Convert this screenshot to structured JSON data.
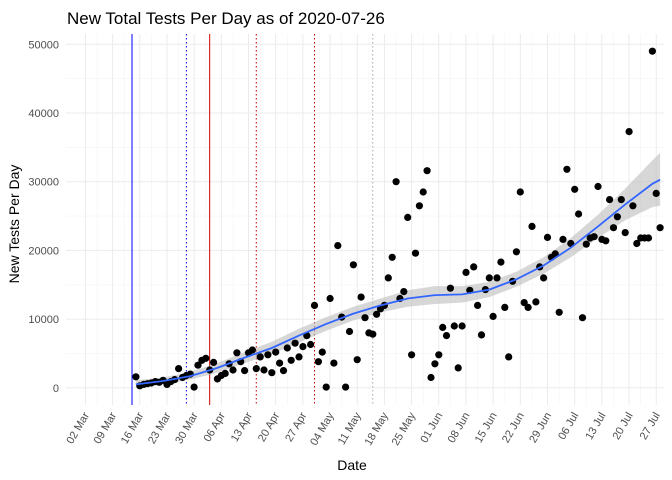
{
  "chart_data": {
    "type": "scatter",
    "title": "New Total Tests Per Day as of 2020-07-26",
    "xlabel": "Date",
    "ylabel": "New Tests Per Day",
    "xlim": [
      "2020-02-26",
      "2020-07-29"
    ],
    "ylim": [
      -2500,
      51500
    ],
    "grid": true,
    "legend": "none",
    "x_ticks": [
      {
        "date": "2020-03-02",
        "label": "02 Mar"
      },
      {
        "date": "2020-03-09",
        "label": "09 Mar"
      },
      {
        "date": "2020-03-16",
        "label": "16 Mar"
      },
      {
        "date": "2020-03-23",
        "label": "23 Mar"
      },
      {
        "date": "2020-03-30",
        "label": "30 Mar"
      },
      {
        "date": "2020-04-06",
        "label": "06 Apr"
      },
      {
        "date": "2020-04-13",
        "label": "13 Apr"
      },
      {
        "date": "2020-04-20",
        "label": "20 Apr"
      },
      {
        "date": "2020-04-27",
        "label": "27 Apr"
      },
      {
        "date": "2020-05-04",
        "label": "04 May"
      },
      {
        "date": "2020-05-11",
        "label": "11 May"
      },
      {
        "date": "2020-05-18",
        "label": "18 May"
      },
      {
        "date": "2020-05-25",
        "label": "25 May"
      },
      {
        "date": "2020-06-01",
        "label": "01 Jun"
      },
      {
        "date": "2020-06-08",
        "label": "08 Jun"
      },
      {
        "date": "2020-06-15",
        "label": "15 Jun"
      },
      {
        "date": "2020-06-22",
        "label": "22 Jun"
      },
      {
        "date": "2020-06-29",
        "label": "29 Jun"
      },
      {
        "date": "2020-07-06",
        "label": "06 Jul"
      },
      {
        "date": "2020-07-13",
        "label": "13 Jul"
      },
      {
        "date": "2020-07-20",
        "label": "20 Jul"
      },
      {
        "date": "2020-07-27",
        "label": "27 Jul"
      }
    ],
    "y_ticks": [
      0,
      10000,
      20000,
      30000,
      40000,
      50000
    ],
    "vlines": [
      {
        "date": "2020-03-14",
        "color": "#0000ff",
        "style": "solid"
      },
      {
        "date": "2020-03-28",
        "color": "#0000ff",
        "style": "dotted"
      },
      {
        "date": "2020-04-03",
        "color": "#cc0000",
        "style": "solid"
      },
      {
        "date": "2020-04-15",
        "color": "#cc0000",
        "style": "dotted"
      },
      {
        "date": "2020-04-30",
        "color": "#cc0000",
        "style": "dotted"
      },
      {
        "date": "2020-05-15",
        "color": "#aaaaaa",
        "style": "dotted"
      }
    ],
    "points_color": "#000000",
    "points": [
      [
        "2020-03-15",
        1600
      ],
      [
        "2020-03-16",
        300
      ],
      [
        "2020-03-17",
        500
      ],
      [
        "2020-03-18",
        600
      ],
      [
        "2020-03-19",
        700
      ],
      [
        "2020-03-20",
        900
      ],
      [
        "2020-03-21",
        800
      ],
      [
        "2020-03-22",
        1100
      ],
      [
        "2020-03-23",
        500
      ],
      [
        "2020-03-24",
        900
      ],
      [
        "2020-03-25",
        1200
      ],
      [
        "2020-03-26",
        2800
      ],
      [
        "2020-03-27",
        1500
      ],
      [
        "2020-03-28",
        1800
      ],
      [
        "2020-03-29",
        2000
      ],
      [
        "2020-03-30",
        100
      ],
      [
        "2020-03-31",
        3300
      ],
      [
        "2020-04-01",
        4000
      ],
      [
        "2020-04-02",
        4300
      ],
      [
        "2020-04-03",
        2600
      ],
      [
        "2020-04-04",
        3700
      ],
      [
        "2020-04-05",
        1300
      ],
      [
        "2020-04-06",
        1800
      ],
      [
        "2020-04-07",
        2100
      ],
      [
        "2020-04-08",
        3500
      ],
      [
        "2020-04-09",
        2600
      ],
      [
        "2020-04-10",
        5100
      ],
      [
        "2020-04-11",
        3800
      ],
      [
        "2020-04-12",
        2500
      ],
      [
        "2020-04-13",
        5100
      ],
      [
        "2020-04-14",
        5500
      ],
      [
        "2020-04-15",
        2800
      ],
      [
        "2020-04-16",
        4500
      ],
      [
        "2020-04-17",
        2600
      ],
      [
        "2020-04-18",
        4800
      ],
      [
        "2020-04-19",
        2200
      ],
      [
        "2020-04-20",
        5200
      ],
      [
        "2020-04-21",
        3600
      ],
      [
        "2020-04-22",
        2500
      ],
      [
        "2020-04-23",
        5800
      ],
      [
        "2020-04-24",
        4000
      ],
      [
        "2020-04-25",
        6500
      ],
      [
        "2020-04-26",
        4500
      ],
      [
        "2020-04-27",
        6000
      ],
      [
        "2020-04-28",
        7600
      ],
      [
        "2020-04-29",
        6300
      ],
      [
        "2020-04-30",
        12000
      ],
      [
        "2020-05-01",
        3800
      ],
      [
        "2020-05-02",
        5200
      ],
      [
        "2020-05-03",
        100
      ],
      [
        "2020-05-04",
        13000
      ],
      [
        "2020-05-05",
        3600
      ],
      [
        "2020-05-06",
        20700
      ],
      [
        "2020-05-07",
        10300
      ],
      [
        "2020-05-08",
        100
      ],
      [
        "2020-05-09",
        8200
      ],
      [
        "2020-05-10",
        17900
      ],
      [
        "2020-05-11",
        4100
      ],
      [
        "2020-05-12",
        13200
      ],
      [
        "2020-05-13",
        10200
      ],
      [
        "2020-05-14",
        8000
      ],
      [
        "2020-05-15",
        7800
      ],
      [
        "2020-05-16",
        10700
      ],
      [
        "2020-05-17",
        11500
      ],
      [
        "2020-05-18",
        12000
      ],
      [
        "2020-05-19",
        16000
      ],
      [
        "2020-05-20",
        19000
      ],
      [
        "2020-05-21",
        30000
      ],
      [
        "2020-05-22",
        13000
      ],
      [
        "2020-05-23",
        14000
      ],
      [
        "2020-05-24",
        24800
      ],
      [
        "2020-05-25",
        4800
      ],
      [
        "2020-05-26",
        19600
      ],
      [
        "2020-05-27",
        26500
      ],
      [
        "2020-05-28",
        28500
      ],
      [
        "2020-05-29",
        31600
      ],
      [
        "2020-05-30",
        1500
      ],
      [
        "2020-05-31",
        3500
      ],
      [
        "2020-06-01",
        4800
      ],
      [
        "2020-06-02",
        8800
      ],
      [
        "2020-06-03",
        7600
      ],
      [
        "2020-06-04",
        14500
      ],
      [
        "2020-06-05",
        9000
      ],
      [
        "2020-06-06",
        2900
      ],
      [
        "2020-06-07",
        9000
      ],
      [
        "2020-06-08",
        16800
      ],
      [
        "2020-06-09",
        14200
      ],
      [
        "2020-06-10",
        17600
      ],
      [
        "2020-06-11",
        12000
      ],
      [
        "2020-06-12",
        7700
      ],
      [
        "2020-06-13",
        14300
      ],
      [
        "2020-06-14",
        16000
      ],
      [
        "2020-06-15",
        10400
      ],
      [
        "2020-06-16",
        16000
      ],
      [
        "2020-06-17",
        18300
      ],
      [
        "2020-06-18",
        11700
      ],
      [
        "2020-06-19",
        4500
      ],
      [
        "2020-06-20",
        15500
      ],
      [
        "2020-06-21",
        19800
      ],
      [
        "2020-06-22",
        28500
      ],
      [
        "2020-06-23",
        12400
      ],
      [
        "2020-06-24",
        11700
      ],
      [
        "2020-06-25",
        23500
      ],
      [
        "2020-06-26",
        12500
      ],
      [
        "2020-06-27",
        17600
      ],
      [
        "2020-06-28",
        16000
      ],
      [
        "2020-06-29",
        21900
      ],
      [
        "2020-06-30",
        19000
      ],
      [
        "2020-07-01",
        19500
      ],
      [
        "2020-07-02",
        11000
      ],
      [
        "2020-07-03",
        21600
      ],
      [
        "2020-07-04",
        31800
      ],
      [
        "2020-07-05",
        21000
      ],
      [
        "2020-07-06",
        28900
      ],
      [
        "2020-07-07",
        25300
      ],
      [
        "2020-07-08",
        10200
      ],
      [
        "2020-07-09",
        20900
      ],
      [
        "2020-07-10",
        21800
      ],
      [
        "2020-07-11",
        22000
      ],
      [
        "2020-07-12",
        29300
      ],
      [
        "2020-07-13",
        21600
      ],
      [
        "2020-07-14",
        21400
      ],
      [
        "2020-07-15",
        27400
      ],
      [
        "2020-07-16",
        23300
      ],
      [
        "2020-07-17",
        24900
      ],
      [
        "2020-07-18",
        27400
      ],
      [
        "2020-07-19",
        22600
      ],
      [
        "2020-07-20",
        37300
      ],
      [
        "2020-07-21",
        26500
      ],
      [
        "2020-07-22",
        21000
      ],
      [
        "2020-07-23",
        21800
      ],
      [
        "2020-07-24",
        21800
      ],
      [
        "2020-07-25",
        21800
      ],
      [
        "2020-07-26",
        49000
      ],
      [
        "2020-07-27",
        28300
      ],
      [
        "2020-07-28",
        23300
      ]
    ],
    "trend": {
      "color": "#3366ff",
      "band_color": "#bdbdbd",
      "points": [
        [
          "2020-03-15",
          500,
          0,
          1100
        ],
        [
          "2020-03-22",
          1000,
          500,
          1500
        ],
        [
          "2020-03-29",
          1700,
          1200,
          2300
        ],
        [
          "2020-04-05",
          2900,
          2200,
          3600
        ],
        [
          "2020-04-12",
          4400,
          3600,
          5200
        ],
        [
          "2020-04-19",
          5800,
          4900,
          6700
        ],
        [
          "2020-04-26",
          7600,
          6600,
          8600
        ],
        [
          "2020-05-03",
          9300,
          8300,
          10300
        ],
        [
          "2020-05-10",
          10800,
          9800,
          11800
        ],
        [
          "2020-05-17",
          12000,
          11000,
          13000
        ],
        [
          "2020-05-24",
          13000,
          11800,
          14200
        ],
        [
          "2020-05-31",
          13500,
          12200,
          14800
        ],
        [
          "2020-06-07",
          13600,
          12400,
          14800
        ],
        [
          "2020-06-14",
          14300,
          13200,
          15400
        ],
        [
          "2020-06-21",
          15800,
          14700,
          16900
        ],
        [
          "2020-06-28",
          17800,
          16600,
          19000
        ],
        [
          "2020-07-05",
          20400,
          19000,
          21800
        ],
        [
          "2020-07-12",
          23500,
          21800,
          25200
        ],
        [
          "2020-07-19",
          26700,
          24400,
          29000
        ],
        [
          "2020-07-26",
          29700,
          26300,
          33100
        ],
        [
          "2020-07-28",
          30300,
          26500,
          34200
        ]
      ]
    }
  }
}
